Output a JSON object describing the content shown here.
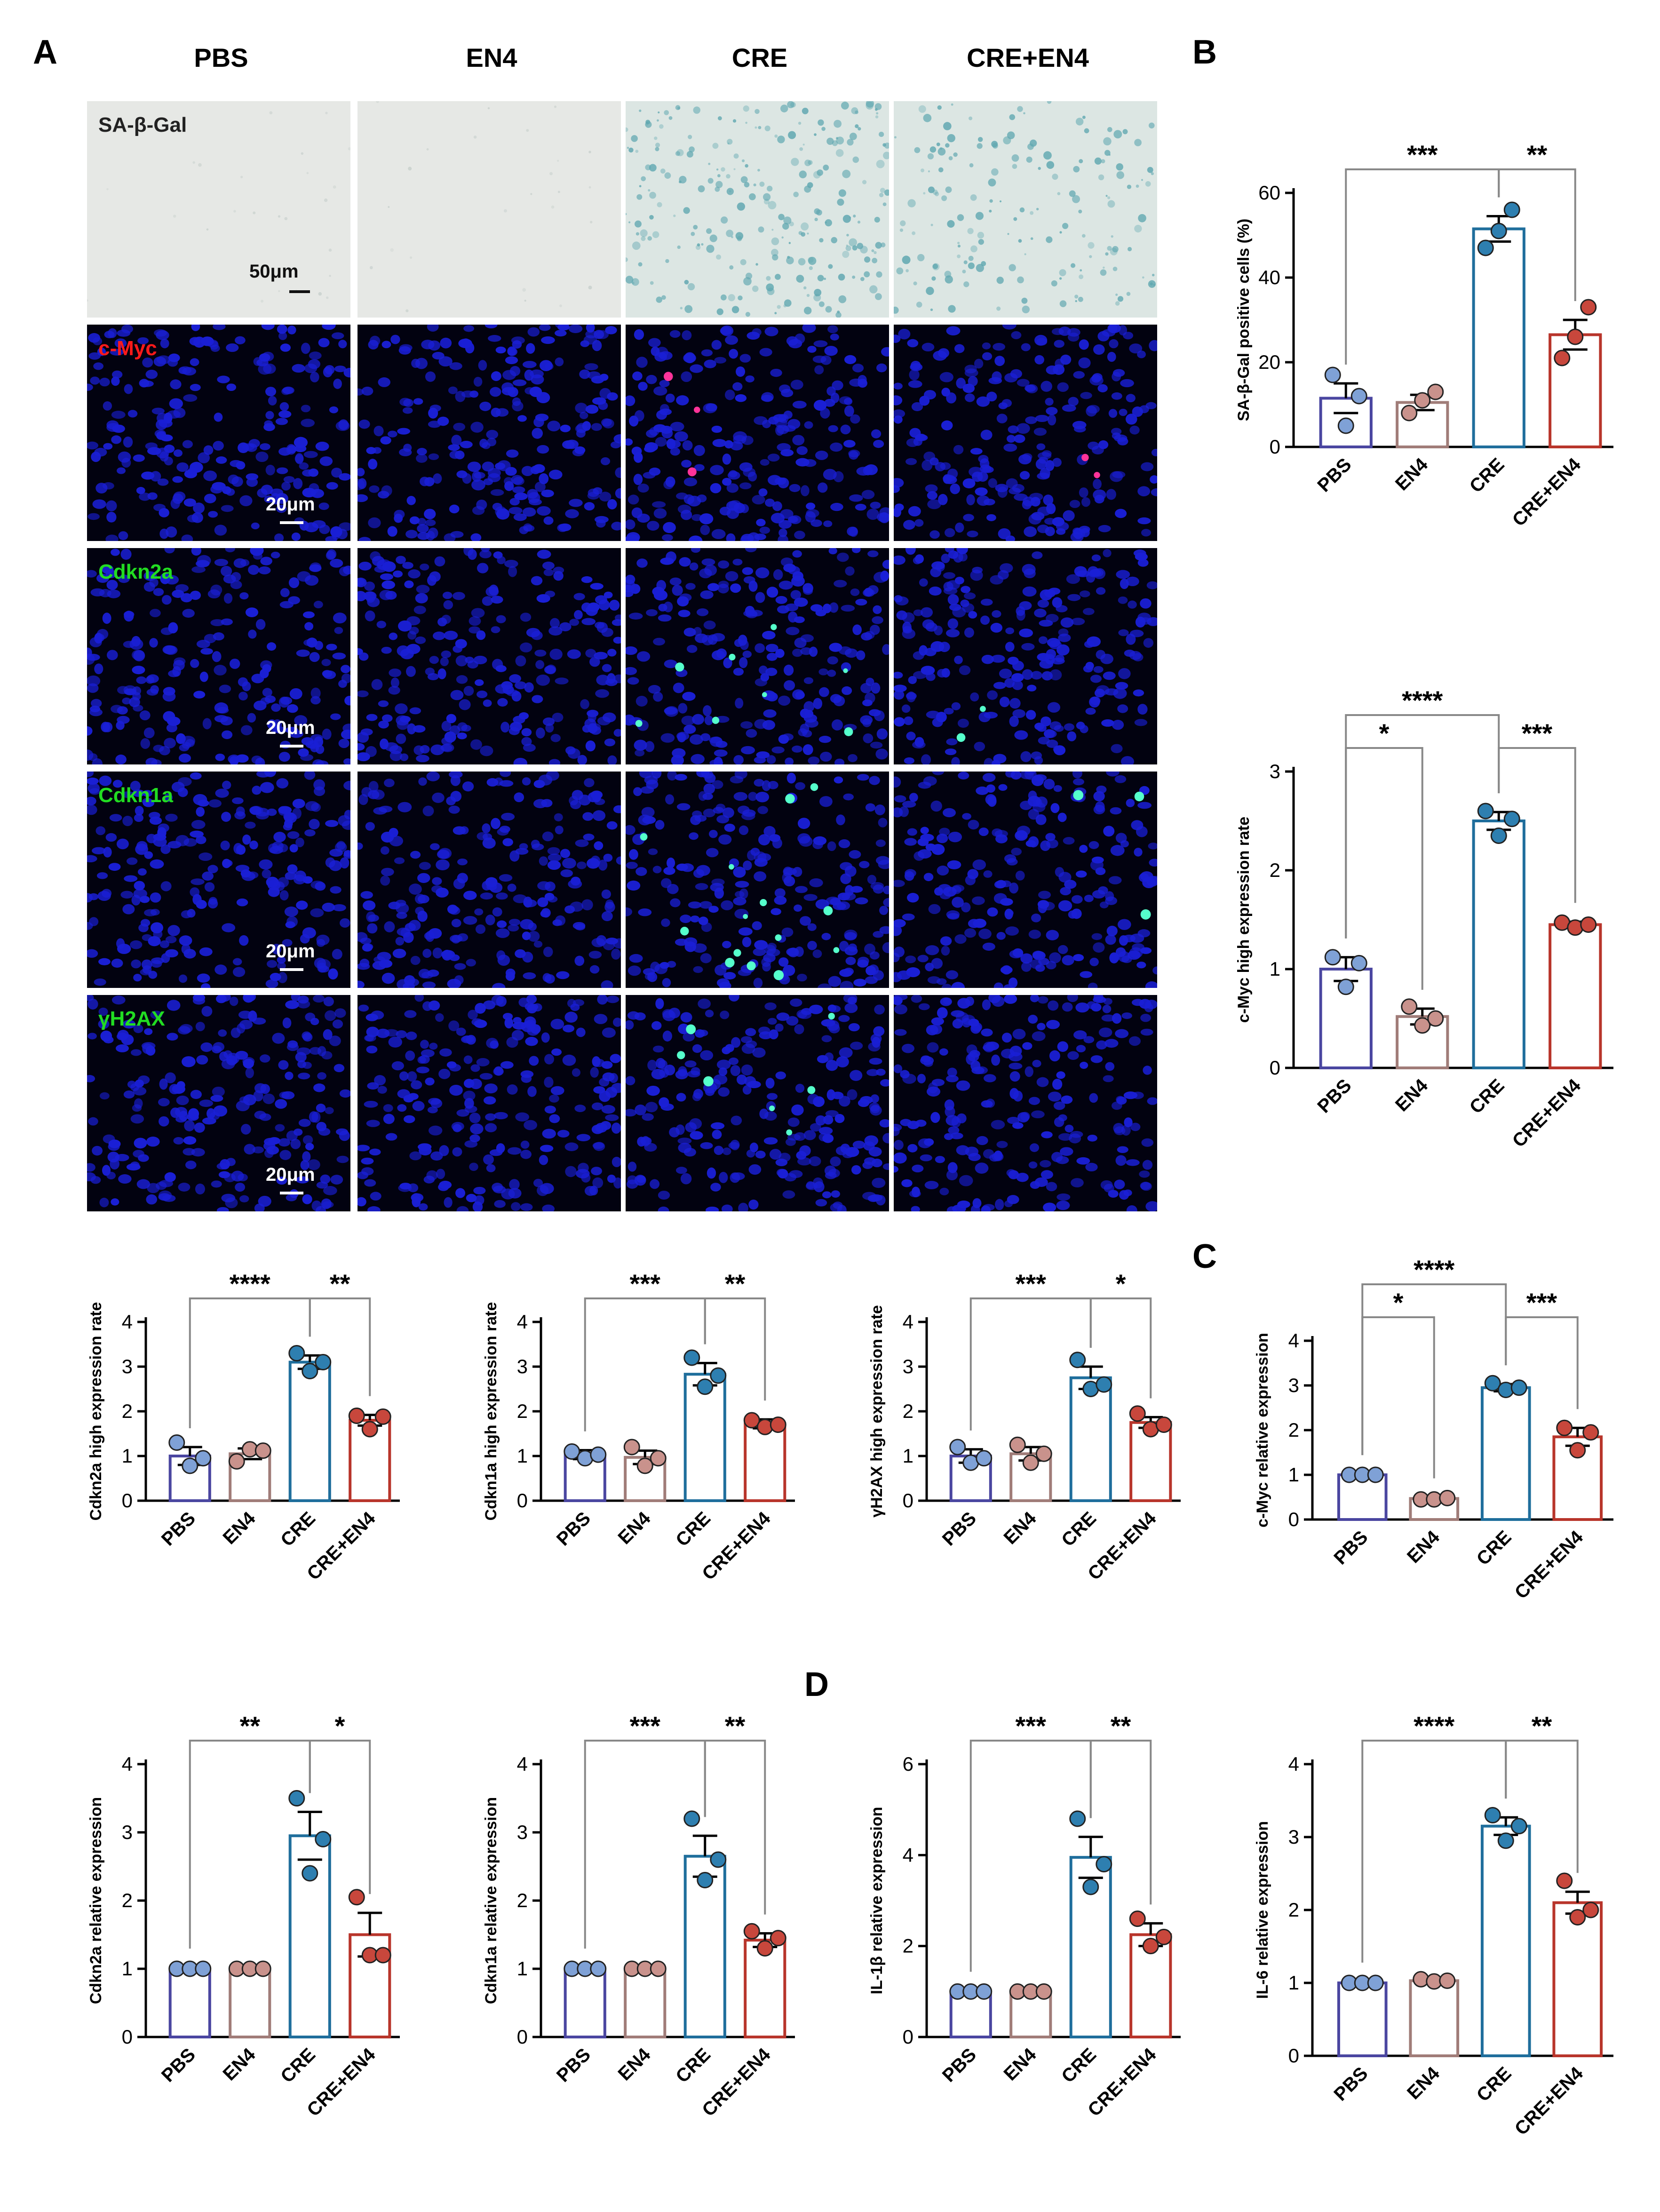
{
  "panels": {
    "a": "A",
    "b": "B",
    "c": "C",
    "d": "D"
  },
  "column_headers": [
    "PBS",
    "EN4",
    "CRE",
    "CRE+EN4"
  ],
  "stain_rows": [
    {
      "label": "SA-β-Gal",
      "label_color": "#222222",
      "scale": "50μm",
      "type": "sa"
    },
    {
      "label": "c-Myc",
      "label_color": "#ff1a1a",
      "scale": "20μm",
      "type": "if",
      "spot_color": "#ff3399"
    },
    {
      "label": "Cdkn2a",
      "label_color": "#22dd22",
      "scale": "20μm",
      "type": "if",
      "spot_color": "#55ffcc"
    },
    {
      "label": "Cdkn1a",
      "label_color": "#22dd22",
      "scale": "20μm",
      "type": "if",
      "spot_color": "#55ffcc"
    },
    {
      "label": "γH2AX",
      "label_color": "#22dd22",
      "scale": "20μm",
      "type": "if",
      "spot_color": "#55ffcc"
    }
  ],
  "group_colors": [
    "#4a46a0",
    "#a07c78",
    "#1f6e9c",
    "#b8352b"
  ],
  "point_colors": [
    "#7fa1d6",
    "#c9928c",
    "#2e7fb0",
    "#c8473c"
  ],
  "chart_data": [
    {
      "id": "sa",
      "type": "bar",
      "categories": [
        "PBS",
        "EN4",
        "CRE",
        "CRE+EN4"
      ],
      "values": [
        11.5,
        10.5,
        51.5,
        26.5
      ],
      "sem": [
        3.5,
        1.8,
        3.0,
        3.5
      ],
      "points": [
        [
          17,
          5,
          12
        ],
        [
          8,
          11,
          13
        ],
        [
          47,
          51,
          56
        ],
        [
          21,
          26,
          33
        ]
      ],
      "ylabel": "SA-β-Gal positive cells (%)",
      "ylim": [
        0,
        60
      ],
      "yticks": [
        0,
        20,
        40,
        60
      ],
      "sig": [
        {
          "a": 0,
          "b": 2,
          "label": "***",
          "level": 0
        },
        {
          "a": 2,
          "b": 3,
          "label": "**",
          "level": 0
        }
      ]
    },
    {
      "id": "myc_if",
      "type": "bar",
      "categories": [
        "PBS",
        "EN4",
        "CRE",
        "CRE+EN4"
      ],
      "values": [
        1.0,
        0.52,
        2.5,
        1.45
      ],
      "sem": [
        0.12,
        0.08,
        0.09,
        0.03
      ],
      "points": [
        [
          1.12,
          0.82,
          1.06
        ],
        [
          0.62,
          0.43,
          0.5
        ],
        [
          2.6,
          2.35,
          2.52
        ],
        [
          1.47,
          1.42,
          1.45
        ]
      ],
      "ylabel": "c-Myc high expression rate",
      "ylim": [
        0,
        3
      ],
      "yticks": [
        0,
        1,
        2,
        3
      ],
      "sig": [
        {
          "a": 0,
          "b": 2,
          "label": "****",
          "level": 1
        },
        {
          "a": 0,
          "b": 1,
          "label": "*",
          "level": 0
        },
        {
          "a": 2,
          "b": 3,
          "label": "***",
          "level": 0
        }
      ]
    },
    {
      "id": "cdkn2a_if",
      "type": "bar",
      "categories": [
        "PBS",
        "EN4",
        "CRE",
        "CRE+EN4"
      ],
      "values": [
        1.0,
        1.05,
        3.1,
        1.8
      ],
      "sem": [
        0.2,
        0.12,
        0.15,
        0.12
      ],
      "points": [
        [
          1.3,
          0.78,
          0.95
        ],
        [
          0.88,
          1.15,
          1.12
        ],
        [
          3.3,
          2.9,
          3.1
        ],
        [
          1.9,
          1.6,
          1.88
        ]
      ],
      "ylabel": "Cdkn2a high expression rate",
      "ylim": [
        0,
        4
      ],
      "yticks": [
        0,
        1,
        2,
        3,
        4
      ],
      "sig": [
        {
          "a": 0,
          "b": 2,
          "label": "****",
          "level": 0
        },
        {
          "a": 2,
          "b": 3,
          "label": "**",
          "level": 0
        }
      ]
    },
    {
      "id": "cdkn1a_if",
      "type": "bar",
      "categories": [
        "PBS",
        "EN4",
        "CRE",
        "CRE+EN4"
      ],
      "values": [
        1.03,
        0.97,
        2.83,
        1.72
      ],
      "sem": [
        0.1,
        0.15,
        0.25,
        0.1
      ],
      "points": [
        [
          1.1,
          0.95,
          1.03
        ],
        [
          1.2,
          0.78,
          0.95
        ],
        [
          3.2,
          2.55,
          2.8
        ],
        [
          1.8,
          1.65,
          1.7
        ]
      ],
      "ylabel": "Cdkn1a high expression rate",
      "ylim": [
        0,
        4
      ],
      "yticks": [
        0,
        1,
        2,
        3,
        4
      ],
      "sig": [
        {
          "a": 0,
          "b": 2,
          "label": "***",
          "level": 0
        },
        {
          "a": 2,
          "b": 3,
          "label": "**",
          "level": 0
        }
      ]
    },
    {
      "id": "h2ax_if",
      "type": "bar",
      "categories": [
        "PBS",
        "EN4",
        "CRE",
        "CRE+EN4"
      ],
      "values": [
        1.0,
        1.05,
        2.75,
        1.75
      ],
      "sem": [
        0.15,
        0.15,
        0.25,
        0.12
      ],
      "points": [
        [
          1.2,
          0.85,
          0.95
        ],
        [
          1.25,
          0.85,
          1.05
        ],
        [
          3.15,
          2.5,
          2.6
        ],
        [
          1.95,
          1.6,
          1.7
        ]
      ],
      "ylabel": "γH2AX high expression rate",
      "ylim": [
        0,
        4
      ],
      "yticks": [
        0,
        1,
        2,
        3,
        4
      ],
      "sig": [
        {
          "a": 0,
          "b": 2,
          "label": "***",
          "level": 0
        },
        {
          "a": 2,
          "b": 3,
          "label": "*",
          "level": 0
        }
      ]
    },
    {
      "id": "myc_rel",
      "type": "bar",
      "categories": [
        "PBS",
        "EN4",
        "CRE",
        "CRE+EN4"
      ],
      "values": [
        1.0,
        0.47,
        2.95,
        1.85
      ],
      "sem": [
        0.02,
        0.03,
        0.08,
        0.2
      ],
      "points": [
        [
          1.0,
          1.0,
          1.0
        ],
        [
          0.45,
          0.45,
          0.48
        ],
        [
          3.05,
          2.9,
          2.95
        ],
        [
          2.05,
          1.55,
          1.95
        ]
      ],
      "ylabel": "c-Myc relative expression",
      "ylim": [
        0,
        4
      ],
      "yticks": [
        0,
        1,
        2,
        3,
        4
      ],
      "sig": [
        {
          "a": 0,
          "b": 2,
          "label": "****",
          "level": 1
        },
        {
          "a": 0,
          "b": 1,
          "label": "*",
          "level": 0
        },
        {
          "a": 2,
          "b": 3,
          "label": "***",
          "level": 0
        }
      ]
    },
    {
      "id": "cdkn2a_rel",
      "type": "bar",
      "categories": [
        "PBS",
        "EN4",
        "CRE",
        "CRE+EN4"
      ],
      "values": [
        1.0,
        1.0,
        2.95,
        1.5
      ],
      "sem": [
        0.02,
        0.02,
        0.35,
        0.32
      ],
      "points": [
        [
          1.0,
          1.0,
          1.0
        ],
        [
          1.0,
          1.0,
          1.0
        ],
        [
          3.5,
          2.4,
          2.9
        ],
        [
          2.05,
          1.2,
          1.2
        ]
      ],
      "ylabel": "Cdkn2a relative expression",
      "ylim": [
        0,
        4
      ],
      "yticks": [
        0,
        1,
        2,
        3,
        4
      ],
      "sig": [
        {
          "a": 0,
          "b": 2,
          "label": "**",
          "level": 0
        },
        {
          "a": 2,
          "b": 3,
          "label": "*",
          "level": 0
        }
      ]
    },
    {
      "id": "cdkn1a_rel",
      "type": "bar",
      "categories": [
        "PBS",
        "EN4",
        "CRE",
        "CRE+EN4"
      ],
      "values": [
        1.0,
        1.0,
        2.65,
        1.42
      ],
      "sem": [
        0.02,
        0.02,
        0.3,
        0.1
      ],
      "points": [
        [
          1.0,
          1.0,
          1.0
        ],
        [
          1.0,
          1.0,
          1.0
        ],
        [
          3.2,
          2.3,
          2.6
        ],
        [
          1.55,
          1.3,
          1.45
        ]
      ],
      "ylabel": "Cdkn1a relative expression",
      "ylim": [
        0,
        4
      ],
      "yticks": [
        0,
        1,
        2,
        3,
        4
      ],
      "sig": [
        {
          "a": 0,
          "b": 2,
          "label": "***",
          "level": 0
        },
        {
          "a": 2,
          "b": 3,
          "label": "**",
          "level": 0
        }
      ]
    },
    {
      "id": "il1b_rel",
      "type": "bar",
      "categories": [
        "PBS",
        "EN4",
        "CRE",
        "CRE+EN4"
      ],
      "values": [
        1.0,
        1.0,
        3.95,
        2.25
      ],
      "sem": [
        0.02,
        0.02,
        0.45,
        0.25
      ],
      "points": [
        [
          1.0,
          1.0,
          1.0
        ],
        [
          1.0,
          1.0,
          1.0
        ],
        [
          4.8,
          3.3,
          3.8
        ],
        [
          2.6,
          2.0,
          2.2
        ]
      ],
      "ylabel": "IL-1β relative expression",
      "ylim": [
        0,
        6
      ],
      "yticks": [
        0,
        2,
        4,
        6
      ],
      "sig": [
        {
          "a": 0,
          "b": 2,
          "label": "***",
          "level": 0
        },
        {
          "a": 2,
          "b": 3,
          "label": "**",
          "level": 0
        }
      ]
    },
    {
      "id": "il6_rel",
      "type": "bar",
      "categories": [
        "PBS",
        "EN4",
        "CRE",
        "CRE+EN4"
      ],
      "values": [
        1.0,
        1.03,
        3.15,
        2.1
      ],
      "sem": [
        0.02,
        0.03,
        0.12,
        0.15
      ],
      "points": [
        [
          1.0,
          1.0,
          1.0
        ],
        [
          1.05,
          1.02,
          1.03
        ],
        [
          3.3,
          2.95,
          3.15
        ],
        [
          2.4,
          1.9,
          2.0
        ]
      ],
      "ylabel": "IL-6 relative expression",
      "ylim": [
        0,
        4
      ],
      "yticks": [
        0,
        1,
        2,
        3,
        4
      ],
      "sig": [
        {
          "a": 0,
          "b": 2,
          "label": "****",
          "level": 0
        },
        {
          "a": 2,
          "b": 3,
          "label": "**",
          "level": 0
        }
      ]
    }
  ]
}
